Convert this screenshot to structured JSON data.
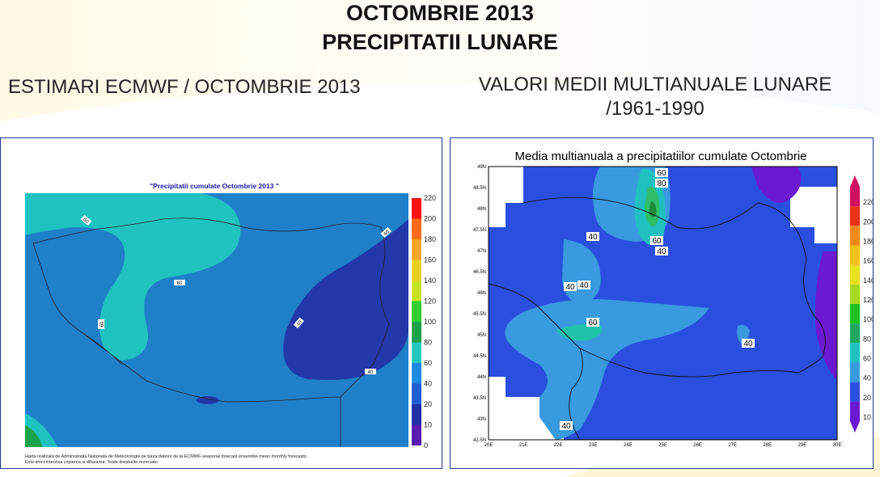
{
  "header": {
    "title_line1": "OCTOMBRIE 2013",
    "title_line2": "PRECIPITATII LUNARE"
  },
  "left_section": {
    "heading": "ESTIMARI ECMWF / OCTOMBRIE 2013",
    "map_title": "\"Precipitatii cumulate Octombrie 2013 \"",
    "colorbar_ticks": [
      "220",
      "200",
      "180",
      "160",
      "140",
      "120",
      "100",
      "80",
      "60",
      "40",
      "20",
      "10",
      "0"
    ],
    "colorbar_colors": [
      "#ff1010",
      "#ff6a1a",
      "#f5a623",
      "#e8d21e",
      "#c8e020",
      "#2fcf2f",
      "#1aa34a",
      "#20c8c0",
      "#1e88e5",
      "#1f5fd1",
      "#2230a8",
      "#5a1cb0",
      "#8a2ad0"
    ],
    "contour_labels": [
      "60",
      "60",
      "60",
      "60",
      "40",
      "60",
      "40"
    ],
    "footnote_line1": "Harta realizata de Administratia Nationala de Meteorologie pe baza datelor de la ECMWF-seasonal forecast ensemble mean monthly forecasts.",
    "footnote_line2": "Este strict interzisa copierea si difuzarea. Toate drepturile rezervate."
  },
  "right_section": {
    "heading_line1": "VALORI MEDII MULTIANUALE LUNARE",
    "heading_line2": "/1961-1990",
    "map_title": "Media multianuala a precipitatiilor cumulate Octombrie",
    "lat_labels": [
      "49N",
      "48.5N",
      "48N",
      "47.5N",
      "47N",
      "46.5N",
      "46N",
      "45.5N",
      "45N",
      "44.5N",
      "44N",
      "43.5N",
      "43N",
      "42.5N"
    ],
    "lon_labels": [
      "20E",
      "21E",
      "22E",
      "23E",
      "24E",
      "25E",
      "26E",
      "27E",
      "28E",
      "29E",
      "30E"
    ],
    "colorbar_ticks": [
      "220",
      "200",
      "180",
      "160",
      "140",
      "120",
      "100",
      "80",
      "60",
      "40",
      "20",
      "10"
    ],
    "colorbar_colors": [
      "#d01060",
      "#e8301a",
      "#f08a1a",
      "#f2c21a",
      "#e8e020",
      "#a8d820",
      "#20c020",
      "#20a860",
      "#20c0c0",
      "#3a9adf",
      "#2a4fdf",
      "#6a1ad0"
    ],
    "contour_labels": [
      "60",
      "80",
      "60",
      "40",
      "40",
      "40",
      "40",
      "60",
      "40",
      "40"
    ]
  },
  "colors": {
    "title": "#111111",
    "panel_border": "#1e3a8a",
    "map_title_blue": "#1a1aa8"
  }
}
